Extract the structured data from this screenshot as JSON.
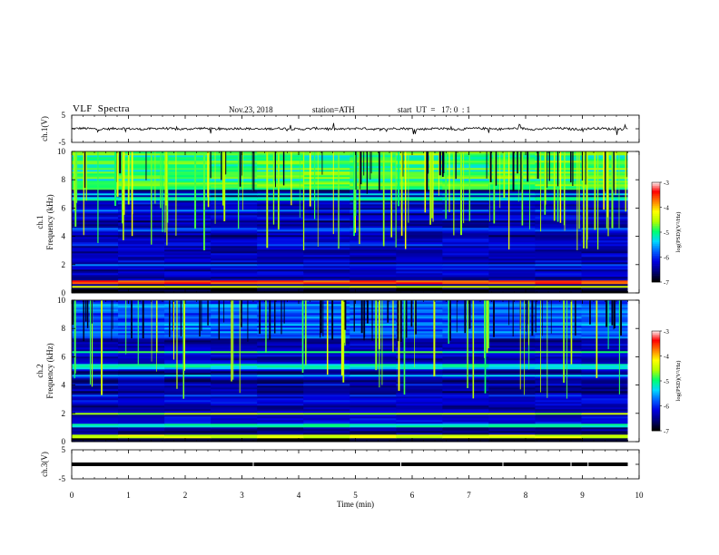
{
  "header": {
    "title": "VLF  Spectra",
    "date": "Nov.23, 2018",
    "station": "station=ATH",
    "start": "start  UT  =   17: 0  : 1"
  },
  "colors": {
    "colormap": [
      "#000000",
      "#00007a",
      "#0000e0",
      "#0060ff",
      "#00d8ff",
      "#00ff70",
      "#b0ff00",
      "#ffff00",
      "#ff8000",
      "#ff0000",
      "#ffffff"
    ],
    "trace": "#000000",
    "axis": "#000000"
  },
  "chart_data": [
    {
      "type": "line",
      "name": "ch1-waveform",
      "ylabel": "ch.1(V)",
      "ylim": [
        -5,
        5
      ],
      "yticks": [
        "5",
        "-5"
      ],
      "xlim": [
        0,
        10
      ],
      "data_end_min": 9.8,
      "baseline_v": 0,
      "noise_amplitude_v": 0.7,
      "spikes_v": 4
    },
    {
      "type": "heatmap",
      "name": "ch1-spectrogram",
      "ylabel": "ch.1\nFrequency  (kHz)",
      "ylim": [
        0,
        10
      ],
      "yticks": [
        "0",
        "2",
        "4",
        "6",
        "8",
        "10"
      ],
      "xlim": [
        0,
        10
      ],
      "data_end_min": 9.8,
      "colorbar": {
        "label": "log(PSD)(V²/Hz)",
        "ticks": [
          "-3",
          "-4",
          "-5",
          "-6",
          "-7"
        ],
        "range": [
          -7,
          -3
        ]
      },
      "bands_khz": [
        {
          "f": 0.7,
          "level": -3.6
        },
        {
          "f": 0.4,
          "level": -4.4
        },
        {
          "f": 5.8,
          "level": -5.8
        },
        {
          "f": 6.6,
          "level": -5.2
        },
        {
          "f": 6.9,
          "level": -5.4
        },
        {
          "f": 1.9,
          "level": -5.8
        },
        {
          "f": 3.3,
          "level": -6.0
        },
        {
          "f": 4.4,
          "level": -5.9
        }
      ],
      "upper_band_level": -5.0
    },
    {
      "type": "heatmap",
      "name": "ch2-spectrogram",
      "ylabel": "ch.2\nFrequency  (kHz)",
      "ylim": [
        0,
        10
      ],
      "yticks": [
        "0",
        "2",
        "4",
        "6",
        "8",
        "10"
      ],
      "xlim": [
        0,
        10
      ],
      "data_end_min": 9.8,
      "colorbar": {
        "label": "log(PSD)(V²/Hz)",
        "ticks": [
          "-3",
          "-4",
          "-5",
          "-6",
          "-7"
        ],
        "range": [
          -7,
          -3
        ]
      },
      "bands_khz": [
        {
          "f": 0.3,
          "level": -4.4
        },
        {
          "f": 1.1,
          "level": -5.2
        },
        {
          "f": 1.9,
          "level": -4.6
        },
        {
          "f": 4.6,
          "level": -5.5
        },
        {
          "f": 5.1,
          "level": -5.4
        },
        {
          "f": 5.3,
          "level": -5.2
        },
        {
          "f": 6.3,
          "level": -5.0
        },
        {
          "f": 3.2,
          "level": -6.0
        }
      ],
      "upper_band_level": -5.8
    },
    {
      "type": "line",
      "name": "ch3-waveform",
      "ylabel": "ch.3(V)",
      "ylim": [
        -5,
        5
      ],
      "yticks": [
        "5",
        "-5"
      ],
      "xlim": [
        0,
        10
      ],
      "data_end_min": 9.8,
      "baseline_v": 0,
      "xlabel": "Time  (min)",
      "xticks": [
        "0",
        "1",
        "2",
        "3",
        "4",
        "5",
        "6",
        "7",
        "8",
        "9",
        "10"
      ]
    }
  ]
}
